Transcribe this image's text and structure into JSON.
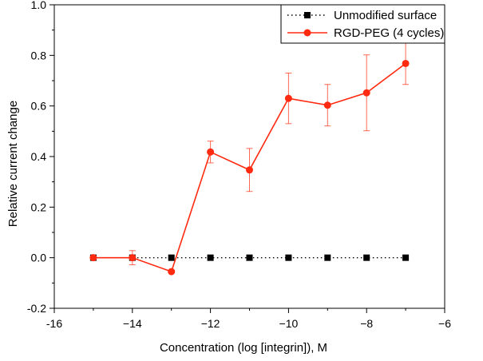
{
  "chart_data": {
    "type": "line",
    "title": "",
    "xlabel": "Concentration (log [integrin]), M",
    "ylabel": "Relative current change",
    "xlim": [
      -16,
      -6
    ],
    "ylim": [
      -0.2,
      1.0
    ],
    "xticks": [
      -16,
      -14,
      -12,
      -10,
      -8,
      -6
    ],
    "yticks": [
      -0.2,
      0.0,
      0.2,
      0.4,
      0.6,
      0.8,
      1.0
    ],
    "xtick_labels": [
      "-16",
      "−14",
      "−12",
      "−10",
      "−8",
      "−6"
    ],
    "ytick_labels": [
      "-0.2",
      "0.0",
      "0.2",
      "0.4",
      "0.6",
      "0.8",
      "1.0"
    ],
    "legend_position": "top-right",
    "series": [
      {
        "name": "Unmodified surface",
        "color": "#000000",
        "line_style": "dotted",
        "marker": "square",
        "x": [
          -15,
          -14,
          -13,
          -12,
          -11,
          -10,
          -9,
          -8,
          -7
        ],
        "y": [
          0.0,
          0.0,
          0.0,
          0.0,
          0.0,
          0.0,
          0.0,
          0.0,
          0.0
        ],
        "error": [
          0,
          0,
          0,
          0,
          0,
          0,
          0,
          0,
          0
        ]
      },
      {
        "name": "RGD-PEG (4 cycles)",
        "color": "#ff2a10",
        "line_style": "solid",
        "marker": "circle",
        "x": [
          -15,
          -14,
          -13,
          -12,
          -11,
          -10,
          -9,
          -8,
          -7
        ],
        "y": [
          0.0,
          0.0,
          -0.055,
          0.418,
          0.347,
          0.63,
          0.603,
          0.652,
          0.768
        ],
        "error": [
          0,
          0.028,
          0,
          0.043,
          0.085,
          0.1,
          0.082,
          0.15,
          0.083
        ]
      }
    ]
  }
}
